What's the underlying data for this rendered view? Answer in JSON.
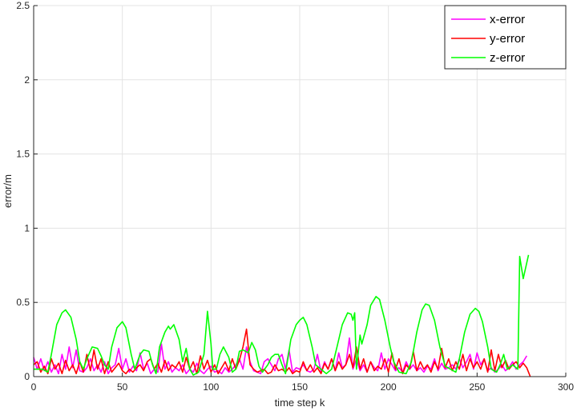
{
  "chart_data": {
    "type": "line",
    "title": "",
    "xlabel": "time step k",
    "ylabel": "error/m",
    "xlim": [
      0,
      300
    ],
    "ylim": [
      0,
      2.5
    ],
    "xticks": [
      "0",
      "50",
      "100",
      "150",
      "200",
      "250",
      "300"
    ],
    "yticks": [
      "0",
      "0.5",
      "1",
      "1.5",
      "2",
      "2.5"
    ],
    "grid": true,
    "legend_placement": "top-right",
    "series": [
      {
        "name": "x-error",
        "color": "#ff00ff",
        "x_step": 2,
        "values": [
          0.13,
          0.05,
          0.12,
          0.04,
          0.1,
          0.03,
          0.08,
          0.02,
          0.15,
          0.05,
          0.2,
          0.06,
          0.18,
          0.04,
          0.03,
          0.06,
          0.12,
          0.04,
          0.08,
          0.03,
          0.1,
          0.02,
          0.06,
          0.08,
          0.19,
          0.05,
          0.12,
          0.03,
          0.07,
          0.04,
          0.16,
          0.05,
          0.09,
          0.02,
          0.05,
          0.03,
          0.22,
          0.05,
          0.1,
          0.03,
          0.06,
          0.04,
          0.08,
          0.02,
          0.05,
          0.03,
          0.09,
          0.04,
          0.02,
          0.05,
          0.07,
          0.03,
          0.04,
          0.02,
          0.06,
          0.03,
          0.05,
          0.08,
          0.12,
          0.05,
          0.2,
          0.1,
          0.04,
          0.03,
          0.02,
          0.1,
          0.12,
          0.08,
          0.04,
          0.12,
          0.15,
          0.05,
          0.18,
          0.03,
          0.06,
          0.05,
          0.08,
          0.04,
          0.03,
          0.05,
          0.15,
          0.03,
          0.1,
          0.05,
          0.12,
          0.04,
          0.16,
          0.06,
          0.08,
          0.26,
          0.05,
          0.12,
          0.04,
          0.08,
          0.03,
          0.1,
          0.06,
          0.04,
          0.16,
          0.05,
          0.12,
          0.08,
          0.04,
          0.06,
          0.03,
          0.1,
          0.05,
          0.08,
          0.04,
          0.06,
          0.03,
          0.07,
          0.05,
          0.12,
          0.04,
          0.09,
          0.05,
          0.06,
          0.08,
          0.05,
          0.12,
          0.06,
          0.1,
          0.15,
          0.05,
          0.16,
          0.08,
          0.12,
          0.04,
          0.06,
          0.03,
          0.05,
          0.08,
          0.04,
          0.06,
          0.1,
          0.05,
          0.08,
          0.1,
          0.14
        ]
      },
      {
        "name": "y-error",
        "color": "#ff0000",
        "x_step": 2,
        "values": [
          0.08,
          0.1,
          0.03,
          0.07,
          0.02,
          0.12,
          0.05,
          0.09,
          0.02,
          0.11,
          0.04,
          0.08,
          0.02,
          0.1,
          0.03,
          0.15,
          0.04,
          0.18,
          0.05,
          0.12,
          0.02,
          0.1,
          0.03,
          0.06,
          0.09,
          0.04,
          0.02,
          0.05,
          0.03,
          0.06,
          0.08,
          0.04,
          0.1,
          0.12,
          0.05,
          0.09,
          0.03,
          0.11,
          0.04,
          0.08,
          0.06,
          0.1,
          0.03,
          0.13,
          0.05,
          0.1,
          0.02,
          0.14,
          0.05,
          0.11,
          0.03,
          0.08,
          0.02,
          0.06,
          0.1,
          0.04,
          0.12,
          0.05,
          0.11,
          0.2,
          0.32,
          0.08,
          0.05,
          0.03,
          0.04,
          0.05,
          0.02,
          0.03,
          0.08,
          0.04,
          0.05,
          0.03,
          0.06,
          0.02,
          0.04,
          0.03,
          0.1,
          0.04,
          0.08,
          0.03,
          0.06,
          0.02,
          0.09,
          0.05,
          0.12,
          0.04,
          0.1,
          0.05,
          0.08,
          0.15,
          0.06,
          0.2,
          0.05,
          0.12,
          0.03,
          0.1,
          0.04,
          0.07,
          0.05,
          0.12,
          0.03,
          0.16,
          0.05,
          0.12,
          0.02,
          0.08,
          0.05,
          0.17,
          0.04,
          0.1,
          0.05,
          0.08,
          0.03,
          0.1,
          0.05,
          0.19,
          0.06,
          0.12,
          0.04,
          0.1,
          0.05,
          0.15,
          0.04,
          0.12,
          0.06,
          0.1,
          0.05,
          0.12,
          0.03,
          0.18,
          0.04,
          0.15,
          0.06,
          0.11,
          0.05,
          0.08,
          0.1,
          0.06,
          0.09,
          0.06,
          0.0
        ]
      },
      {
        "name": "z-error",
        "color": "#00ff00",
        "points": [
          [
            0,
            0.05
          ],
          [
            5,
            0.05
          ],
          [
            8,
            0.03
          ],
          [
            10,
            0.15
          ],
          [
            13,
            0.35
          ],
          [
            16,
            0.43
          ],
          [
            18,
            0.45
          ],
          [
            21,
            0.4
          ],
          [
            24,
            0.25
          ],
          [
            26,
            0.1
          ],
          [
            28,
            0.05
          ],
          [
            30,
            0.12
          ],
          [
            33,
            0.2
          ],
          [
            36,
            0.19
          ],
          [
            38,
            0.14
          ],
          [
            40,
            0.08
          ],
          [
            42,
            0.05
          ],
          [
            44,
            0.2
          ],
          [
            47,
            0.33
          ],
          [
            50,
            0.37
          ],
          [
            52,
            0.33
          ],
          [
            55,
            0.15
          ],
          [
            57,
            0.05
          ],
          [
            60,
            0.15
          ],
          [
            62,
            0.18
          ],
          [
            65,
            0.17
          ],
          [
            67,
            0.08
          ],
          [
            69,
            0.02
          ],
          [
            71,
            0.2
          ],
          [
            74,
            0.3
          ],
          [
            76,
            0.34
          ],
          [
            77,
            0.32
          ],
          [
            79,
            0.35
          ],
          [
            82,
            0.25
          ],
          [
            84,
            0.1
          ],
          [
            86,
            0.19
          ],
          [
            88,
            0.05
          ],
          [
            90,
            0.01
          ],
          [
            93,
            0.03
          ],
          [
            96,
            0.15
          ],
          [
            98,
            0.44
          ],
          [
            100,
            0.22
          ],
          [
            101,
            0.05
          ],
          [
            103,
            0.05
          ],
          [
            105,
            0.15
          ],
          [
            107,
            0.2
          ],
          [
            110,
            0.13
          ],
          [
            112,
            0.03
          ],
          [
            114,
            0.05
          ],
          [
            116,
            0.17
          ],
          [
            118,
            0.18
          ],
          [
            121,
            0.16
          ],
          [
            123,
            0.23
          ],
          [
            125,
            0.18
          ],
          [
            127,
            0.07
          ],
          [
            129,
            0.03
          ],
          [
            132,
            0.08
          ],
          [
            134,
            0.13
          ],
          [
            136,
            0.15
          ],
          [
            138,
            0.15
          ],
          [
            140,
            0.08
          ],
          [
            142,
            0.02
          ],
          [
            145,
            0.25
          ],
          [
            148,
            0.35
          ],
          [
            150,
            0.38
          ],
          [
            152,
            0.4
          ],
          [
            154,
            0.35
          ],
          [
            157,
            0.2
          ],
          [
            159,
            0.08
          ],
          [
            162,
            0.05
          ],
          [
            165,
            0.02
          ],
          [
            168,
            0.05
          ],
          [
            171,
            0.2
          ],
          [
            174,
            0.35
          ],
          [
            177,
            0.43
          ],
          [
            179,
            0.42
          ],
          [
            180,
            0.38
          ],
          [
            181,
            0.43
          ],
          [
            182,
            0.05
          ],
          [
            184,
            0.28
          ],
          [
            185,
            0.22
          ],
          [
            188,
            0.35
          ],
          [
            190,
            0.48
          ],
          [
            193,
            0.54
          ],
          [
            195,
            0.52
          ],
          [
            198,
            0.38
          ],
          [
            201,
            0.2
          ],
          [
            203,
            0.1
          ],
          [
            206,
            0.03
          ],
          [
            210,
            0.02
          ],
          [
            213,
            0.1
          ],
          [
            216,
            0.3
          ],
          [
            219,
            0.45
          ],
          [
            221,
            0.49
          ],
          [
            223,
            0.48
          ],
          [
            226,
            0.38
          ],
          [
            229,
            0.2
          ],
          [
            232,
            0.07
          ],
          [
            235,
            0.05
          ],
          [
            238,
            0.03
          ],
          [
            240,
            0.12
          ],
          [
            243,
            0.3
          ],
          [
            246,
            0.42
          ],
          [
            249,
            0.46
          ],
          [
            251,
            0.44
          ],
          [
            253,
            0.37
          ],
          [
            256,
            0.2
          ],
          [
            258,
            0.05
          ],
          [
            261,
            0.03
          ],
          [
            263,
            0.08
          ],
          [
            265,
            0.15
          ],
          [
            267,
            0.05
          ],
          [
            270,
            0.08
          ],
          [
            273,
            0.05
          ],
          [
            274,
            0.81
          ],
          [
            276,
            0.66
          ],
          [
            279,
            0.82
          ]
        ]
      }
    ]
  }
}
